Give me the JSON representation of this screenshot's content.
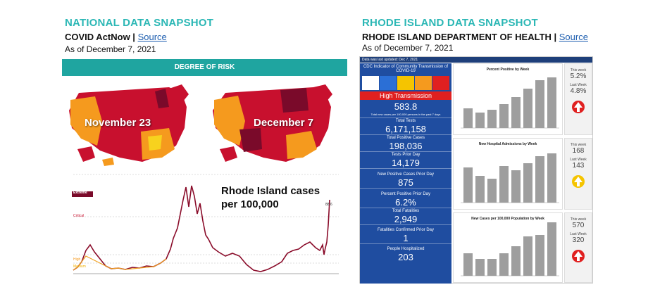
{
  "national": {
    "title": "NATIONAL DATA SNAPSHOT",
    "source_line": "COVID ActNow | ",
    "source_link": "Source",
    "as_of": "As of December 7, 2021",
    "risk_bar": "DEGREE OF RISK",
    "map_left_label": "November 23",
    "map_right_label": "December 7",
    "chart_annotation_line1": "Rhode Island cases",
    "chart_annotation_line2": "per 100,000",
    "chart_levels": [
      "Extreme",
      "Critical",
      "High",
      "Medium"
    ],
    "end_value": "88.6"
  },
  "ri": {
    "title": "RHODE ISLAND DATA SNAPSHOT",
    "source_line": "RHODE ISLAND DEPARTMENT OF HEALTH | ",
    "source_link": "Source",
    "as_of": "As of December 7, 2021",
    "header_note": "Data was last updated: Dec 7, 2021",
    "indicator_title": "CDC Indicator of Community Transmission of COVID-19",
    "transmission_level": "High Transmission",
    "rate_value": "583.8",
    "rate_label": "Total new cases per 100,000 persons in the past 7 days",
    "stats": [
      {
        "label": "Total Tests",
        "value": "6,171,158"
      },
      {
        "label": "Total Positive Cases",
        "value": "198,036"
      },
      {
        "label": "Tests Prior Day",
        "value": "14,179"
      },
      {
        "label": "New Positive Cases Prior Day",
        "value": "875"
      },
      {
        "label": "Percent Positive Prior Day",
        "value": "6.2%"
      },
      {
        "label": "Total Fatalities",
        "value": "2,949"
      },
      {
        "label": "Fatalities Confirmed Prior Day",
        "value": "1"
      },
      {
        "label": "People Hospitalized",
        "value": "203"
      }
    ],
    "charts": [
      {
        "title": "Percent Positive by Week",
        "this_week_label": "This week",
        "this_week": "5.2%",
        "last_week_label": "Last Week",
        "last_week": "4.8%",
        "arrow_color": "#e02020"
      },
      {
        "title": "New Hospital Admissions by Week",
        "this_week_label": "This week",
        "this_week": "168",
        "last_week_label": "Last Week",
        "last_week": "143",
        "arrow_color": "#f5c400"
      },
      {
        "title": "New Cases per 100,000 Population by Week",
        "this_week_label": "This week",
        "this_week": "570",
        "last_week_label": "Last Week",
        "last_week": "320",
        "arrow_color": "#e02020"
      }
    ]
  },
  "colors": {
    "teal": "#2bb7b5",
    "risk_bar": "#1fa5a0",
    "ri_blue": "#1f4da0",
    "map_red": "#c8102e",
    "map_dark": "#7a0a2a",
    "map_orange": "#f59a1e",
    "map_yellow": "#f7d21e"
  }
}
